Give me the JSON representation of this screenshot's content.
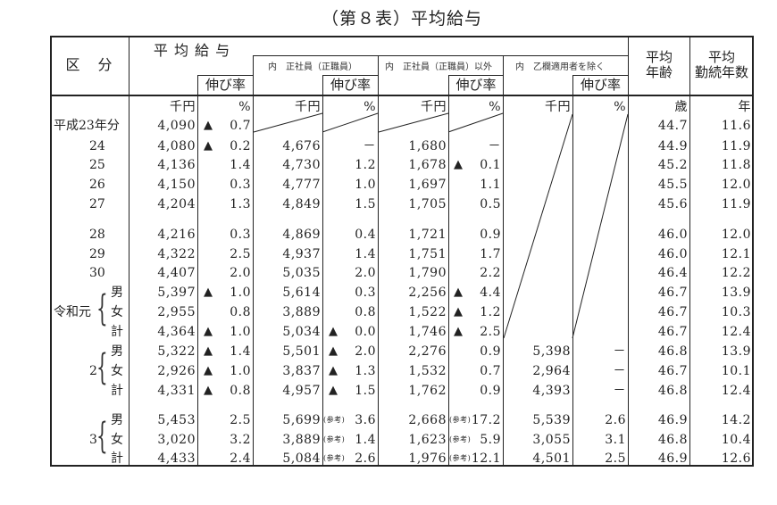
{
  "title": "（第８表）平均給与",
  "header": {
    "category": "区　分",
    "avg_salary": "平 均 給 与",
    "growth_rate": "伸び率",
    "regular": "内　正社員（正職員）",
    "non_regular": "内　正社員（正職員）以外",
    "excluding_otsu": "内　乙欄適用者を除く",
    "avg_age_line1": "平均",
    "avg_age_line2": "年齢",
    "avg_tenure_line1": "平均",
    "avg_tenure_line2": "勤続年数"
  },
  "units": {
    "salary": "千円",
    "rate": "%",
    "regular_salary": "千円",
    "regular_rate": "%",
    "nonregular_salary": "千円",
    "nonregular_rate": "%",
    "otsu_salary": "千円",
    "otsu_rate": "%",
    "age": "歳",
    "tenure": "年"
  },
  "ref_label": "(参考)",
  "decrease_marker": "▲",
  "groups": {
    "reiwa1": "令和元",
    "r2": "2",
    "r3": "3"
  },
  "rows": [
    {
      "label": "平成23年分",
      "sal": "4,090",
      "rate_neg": true,
      "rate": "0.7",
      "reg": "",
      "reg_rate_neg": false,
      "reg_rate": "",
      "non": "",
      "non_rate_neg": false,
      "non_rate": "",
      "otsu": "",
      "otsu_rate": "",
      "age": "44.7",
      "tenure": "11.6"
    },
    {
      "label": "24",
      "sal": "4,080",
      "rate_neg": true,
      "rate": "0.2",
      "reg": "4,676",
      "reg_rate_neg": false,
      "reg_rate": "－",
      "non": "1,680",
      "non_rate_neg": false,
      "non_rate": "－",
      "otsu": "",
      "otsu_rate": "",
      "age": "44.9",
      "tenure": "11.9"
    },
    {
      "label": "25",
      "sal": "4,136",
      "rate_neg": false,
      "rate": "1.4",
      "reg": "4,730",
      "reg_rate_neg": false,
      "reg_rate": "1.2",
      "non": "1,678",
      "non_rate_neg": true,
      "non_rate": "0.1",
      "otsu": "",
      "otsu_rate": "",
      "age": "45.2",
      "tenure": "11.8"
    },
    {
      "label": "26",
      "sal": "4,150",
      "rate_neg": false,
      "rate": "0.3",
      "reg": "4,777",
      "reg_rate_neg": false,
      "reg_rate": "1.0",
      "non": "1,697",
      "non_rate_neg": false,
      "non_rate": "1.1",
      "otsu": "",
      "otsu_rate": "",
      "age": "45.5",
      "tenure": "12.0"
    },
    {
      "label": "27",
      "sal": "4,204",
      "rate_neg": false,
      "rate": "1.3",
      "reg": "4,849",
      "reg_rate_neg": false,
      "reg_rate": "1.5",
      "non": "1,705",
      "non_rate_neg": false,
      "non_rate": "0.5",
      "otsu": "",
      "otsu_rate": "",
      "age": "45.6",
      "tenure": "11.9"
    },
    {
      "label": "28",
      "sal": "4,216",
      "rate_neg": false,
      "rate": "0.3",
      "reg": "4,869",
      "reg_rate_neg": false,
      "reg_rate": "0.4",
      "non": "1,721",
      "non_rate_neg": false,
      "non_rate": "0.9",
      "otsu": "",
      "otsu_rate": "",
      "age": "46.0",
      "tenure": "12.0"
    },
    {
      "label": "29",
      "sal": "4,322",
      "rate_neg": false,
      "rate": "2.5",
      "reg": "4,937",
      "reg_rate_neg": false,
      "reg_rate": "1.4",
      "non": "1,751",
      "non_rate_neg": false,
      "non_rate": "1.7",
      "otsu": "",
      "otsu_rate": "",
      "age": "46.0",
      "tenure": "12.1"
    },
    {
      "label": "30",
      "sal": "4,407",
      "rate_neg": false,
      "rate": "2.0",
      "reg": "5,035",
      "reg_rate_neg": false,
      "reg_rate": "2.0",
      "non": "1,790",
      "non_rate_neg": false,
      "non_rate": "2.2",
      "otsu": "",
      "otsu_rate": "",
      "age": "46.4",
      "tenure": "12.2"
    },
    {
      "label": "男",
      "sal": "5,397",
      "rate_neg": true,
      "rate": "1.0",
      "reg": "5,614",
      "reg_rate_neg": false,
      "reg_rate": "0.3",
      "non": "2,256",
      "non_rate_neg": true,
      "non_rate": "4.4",
      "otsu": "",
      "otsu_rate": "",
      "age": "46.7",
      "tenure": "13.9"
    },
    {
      "label": "女",
      "sal": "2,955",
      "rate_neg": false,
      "rate": "0.8",
      "reg": "3,889",
      "reg_rate_neg": false,
      "reg_rate": "0.8",
      "non": "1,522",
      "non_rate_neg": true,
      "non_rate": "1.2",
      "otsu": "",
      "otsu_rate": "",
      "age": "46.7",
      "tenure": "10.3"
    },
    {
      "label": "計",
      "sal": "4,364",
      "rate_neg": true,
      "rate": "1.0",
      "reg": "5,034",
      "reg_rate_neg": true,
      "reg_rate": "0.0",
      "non": "1,746",
      "non_rate_neg": true,
      "non_rate": "2.5",
      "otsu": "",
      "otsu_rate": "",
      "age": "46.7",
      "tenure": "12.4"
    },
    {
      "label": "男",
      "sal": "5,322",
      "rate_neg": true,
      "rate": "1.4",
      "reg": "5,501",
      "reg_rate_neg": true,
      "reg_rate": "2.0",
      "non": "2,276",
      "non_rate_neg": false,
      "non_rate": "0.9",
      "otsu": "5,398",
      "otsu_rate": "－",
      "age": "46.8",
      "tenure": "13.9"
    },
    {
      "label": "女",
      "sal": "2,926",
      "rate_neg": true,
      "rate": "1.0",
      "reg": "3,837",
      "reg_rate_neg": true,
      "reg_rate": "1.3",
      "non": "1,532",
      "non_rate_neg": false,
      "non_rate": "0.7",
      "otsu": "2,964",
      "otsu_rate": "－",
      "age": "46.7",
      "tenure": "10.1"
    },
    {
      "label": "計",
      "sal": "4,331",
      "rate_neg": true,
      "rate": "0.8",
      "reg": "4,957",
      "reg_rate_neg": true,
      "reg_rate": "1.5",
      "non": "1,762",
      "non_rate_neg": false,
      "non_rate": "0.9",
      "otsu": "4,393",
      "otsu_rate": "－",
      "age": "46.8",
      "tenure": "12.4"
    },
    {
      "label": "男",
      "sal": "5,453",
      "rate_neg": false,
      "rate": "2.5",
      "reg": "5,699",
      "reg_ref": true,
      "reg_rate_neg": false,
      "reg_rate": "3.6",
      "non": "2,668",
      "non_ref": true,
      "non_rate_neg": false,
      "non_rate": "17.2",
      "otsu": "5,539",
      "otsu_rate": "2.6",
      "age": "46.9",
      "tenure": "14.2"
    },
    {
      "label": "女",
      "sal": "3,020",
      "rate_neg": false,
      "rate": "3.2",
      "reg": "3,889",
      "reg_ref": true,
      "reg_rate_neg": false,
      "reg_rate": "1.4",
      "non": "1,623",
      "non_ref": true,
      "non_rate_neg": false,
      "non_rate": "5.9",
      "otsu": "3,055",
      "otsu_rate": "3.1",
      "age": "46.8",
      "tenure": "10.4"
    },
    {
      "label": "計",
      "sal": "4,433",
      "rate_neg": false,
      "rate": "2.4",
      "reg": "5,084",
      "reg_ref": true,
      "reg_rate_neg": false,
      "reg_rate": "2.6",
      "non": "1,976",
      "non_ref": true,
      "non_rate_neg": false,
      "non_rate": "12.1",
      "otsu": "4,501",
      "otsu_rate": "2.5",
      "age": "46.9",
      "tenure": "12.6"
    }
  ]
}
